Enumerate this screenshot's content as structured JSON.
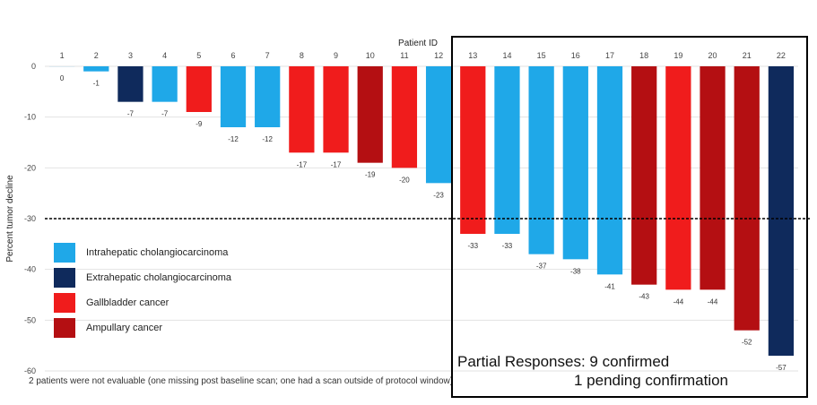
{
  "chart_data": {
    "type": "bar",
    "xlabel": "Patient ID",
    "ylabel": "Percent tumor decline",
    "ylim": [
      -60,
      0
    ],
    "yticks": [
      0,
      -10,
      -20,
      -30,
      -40,
      -50,
      -60
    ],
    "threshold": -30,
    "categories": [
      "1",
      "2",
      "3",
      "4",
      "5",
      "6",
      "7",
      "8",
      "9",
      "10",
      "11",
      "12",
      "13",
      "14",
      "15",
      "16",
      "17",
      "18",
      "19",
      "20",
      "21",
      "22"
    ],
    "values": [
      0,
      -1,
      -7,
      -7,
      -9,
      -12,
      -12,
      -17,
      -17,
      -19,
      -20,
      -23,
      -33,
      -33,
      -37,
      -38,
      -41,
      -43,
      -44,
      -44,
      -52,
      -57
    ],
    "value_labels": [
      "0",
      "-1",
      "-7",
      "-7",
      "-9",
      "-12",
      "-12",
      "-17",
      "-17",
      "-19",
      "-20",
      "-23",
      "-33",
      "-33",
      "-37",
      "-38",
      "-41",
      "-43",
      "-44",
      "-44",
      "-52",
      "-57"
    ],
    "bar_types": [
      "intrahepatic",
      "intrahepatic",
      "extrahepatic",
      "intrahepatic",
      "gallbladder",
      "intrahepatic",
      "intrahepatic",
      "gallbladder",
      "gallbladder",
      "ampullary",
      "gallbladder",
      "intrahepatic",
      "gallbladder",
      "intrahepatic",
      "intrahepatic",
      "intrahepatic",
      "intrahepatic",
      "ampullary",
      "gallbladder",
      "ampullary",
      "ampullary",
      "extrahepatic"
    ],
    "legend": [
      {
        "key": "intrahepatic",
        "name": "Intrahepatic cholangiocarcinoma",
        "color": "#1fa8e8"
      },
      {
        "key": "extrahepatic",
        "name": "Extrahepatic cholangiocarcinoma",
        "color": "#0f2a5c"
      },
      {
        "key": "gallbladder",
        "name": "Gallbladder cancer",
        "color": "#f01c1c"
      },
      {
        "key": "ampullary",
        "name": "Ampullary cancer",
        "color": "#b40f12"
      }
    ]
  },
  "annotations": {
    "footnote": "2 patients were not evaluable (one missing post baseline scan; one had a scan outside of protocol window)",
    "partial_responses_line1": "Partial Responses: 9 confirmed",
    "partial_responses_line2": "1 pending confirmation"
  }
}
